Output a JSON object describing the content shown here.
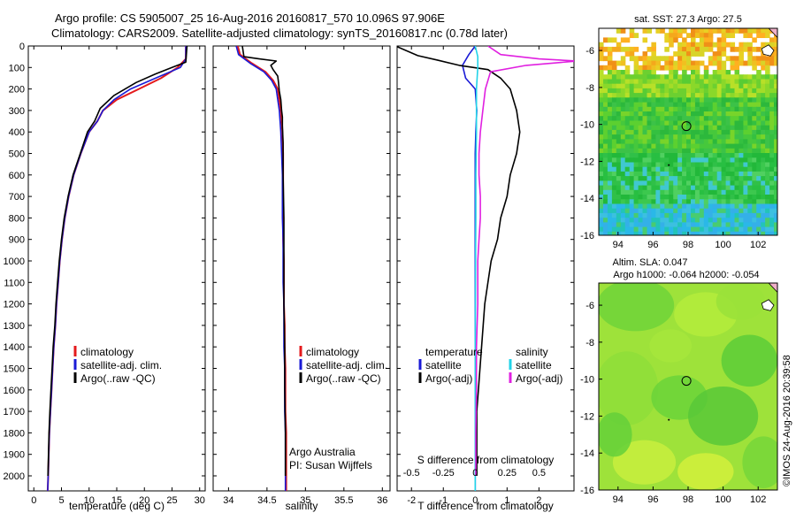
{
  "header": {
    "title_line1": "Argo profile: CS 5905007_25 16-Aug-2016 20160817_570 10.096S 97.906E",
    "title_line2": "Climatology: CARS2009. Satellite-adjusted climatology: synTS_20160817.nc (0.78d later)"
  },
  "colors": {
    "climatology": "#e41a1c",
    "satellite": "#1a1ad6",
    "argo": "#000000",
    "satellite_s": "#22d3e8",
    "argo_s": "#e020e0"
  },
  "depth_axis": {
    "ylim": [
      0,
      2070
    ],
    "ticks": [
      0,
      100,
      200,
      300,
      400,
      500,
      600,
      700,
      800,
      900,
      1000,
      1100,
      1200,
      1300,
      1400,
      1500,
      1600,
      1700,
      1800,
      1900,
      2000
    ],
    "tick_labels": [
      "0",
      "100",
      "200",
      "300",
      "400",
      "500",
      "600",
      "700",
      "800",
      "900",
      "1000",
      "1100",
      "1200",
      "1300",
      "1400",
      "1500",
      "1600",
      "1700",
      "1800",
      "1900",
      "2000"
    ]
  },
  "legend_profiles": [
    "climatology",
    "satellite-adj. clim.",
    "Argo(..raw -QC)"
  ],
  "legend_diff": {
    "col1_title": "temperature",
    "col2_title": "salinity",
    "satellite": "satellite",
    "argo": "Argo(-adj)"
  },
  "credits": {
    "line1": "Argo Australia",
    "line2": "PI: Susan Wijffels"
  },
  "maps": {
    "sst_title": "sat. SST: 27.3 Argo: 27.5",
    "sla_title_line1": "Altim. SLA: 0.047",
    "sla_title_line2": "Argo h1000: -0.064 h2000: -0.054",
    "x_ticks": [
      94,
      96,
      98,
      100,
      102
    ],
    "x_tick_labels": [
      "94",
      "96",
      "98",
      "100",
      "102"
    ],
    "y_ticks": [
      -6,
      -8,
      -10,
      -12,
      -14,
      -16
    ],
    "y_tick_labels": [
      "-6",
      "-8",
      "-10",
      "-12",
      "-14",
      "-16"
    ],
    "xlim": [
      92.9,
      103.1
    ],
    "ylim": [
      -16,
      -4.8
    ],
    "argo_position": [
      97.906,
      -10.096
    ]
  },
  "side_stamp": "©IMOS 24-Aug-2016 20:39:58",
  "chart_data": [
    {
      "type": "line",
      "xlabel": "temperature (deg C)",
      "xlim": [
        -1,
        31
      ],
      "x_ticks": [
        0,
        5,
        10,
        15,
        20,
        25,
        30
      ],
      "x_tick_labels": [
        "0",
        "5",
        "10",
        "15",
        "20",
        "25",
        "30"
      ],
      "ylim": [
        0,
        2070
      ],
      "series": [
        {
          "name": "climatology",
          "color_key": "climatology",
          "x": [
            27.5,
            27.5,
            26,
            23,
            19,
            15,
            12.5,
            11.5,
            10,
            8.5,
            7.2,
            6.3,
            5.6,
            5.1,
            4.7,
            4.4,
            4.1,
            3.9,
            3.6,
            3.4,
            3.2,
            3,
            2.8,
            2.7,
            2.6,
            2.5
          ],
          "y": [
            0,
            60,
            100,
            150,
            200,
            250,
            300,
            350,
            400,
            500,
            600,
            700,
            800,
            900,
            1000,
            1100,
            1200,
            1300,
            1400,
            1500,
            1600,
            1700,
            1800,
            1900,
            2000,
            2070
          ]
        },
        {
          "name": "satellite-adj. clim.",
          "color_key": "satellite",
          "x": [
            27.5,
            27.5,
            26.5,
            22,
            17.5,
            14.5,
            12.5,
            11.5,
            10,
            8.5,
            7.2,
            6.3,
            5.6,
            5.1,
            4.7,
            4.4,
            4.1,
            3.9,
            3.6,
            3.4,
            3.2,
            3,
            2.8,
            2.7,
            2.6,
            2.5
          ],
          "y": [
            0,
            60,
            100,
            150,
            200,
            250,
            300,
            350,
            400,
            500,
            600,
            700,
            800,
            900,
            1000,
            1100,
            1200,
            1300,
            1400,
            1500,
            1600,
            1700,
            1800,
            1900,
            2000,
            2070
          ]
        },
        {
          "name": "Argo(..raw -QC)",
          "color_key": "argo",
          "x": [
            27.7,
            27.5,
            25,
            22,
            18.5,
            14.5,
            12,
            11,
            9.7,
            8.4,
            7.1,
            6.2,
            5.5,
            5,
            4.6,
            4.3,
            4,
            3.8,
            3.5,
            3.3,
            3.1,
            2.9,
            2.75,
            2.65,
            2.55
          ],
          "y": [
            0,
            75,
            100,
            130,
            170,
            230,
            290,
            350,
            400,
            500,
            600,
            700,
            800,
            900,
            1000,
            1100,
            1200,
            1300,
            1400,
            1500,
            1600,
            1700,
            1800,
            1900,
            2000
          ]
        }
      ]
    },
    {
      "type": "line",
      "xlabel": "salinity",
      "xlim": [
        33.8,
        36.1
      ],
      "x_ticks": [
        34,
        34.5,
        35,
        35.5,
        36
      ],
      "x_tick_labels": [
        "34",
        "34.5",
        "35",
        "35.5",
        "36"
      ],
      "ylim": [
        0,
        2070
      ],
      "series": [
        {
          "name": "climatology",
          "color_key": "climatology",
          "x": [
            34.12,
            34.15,
            34.3,
            34.48,
            34.58,
            34.64,
            34.68,
            34.7,
            34.71,
            34.71,
            34.71,
            34.71,
            34.71,
            34.72,
            34.72,
            34.72,
            34.73,
            34.73,
            34.74,
            34.74,
            34.74,
            34.75,
            34.75,
            34.75
          ],
          "y": [
            0,
            40,
            80,
            120,
            160,
            200,
            300,
            400,
            500,
            600,
            700,
            800,
            900,
            1000,
            1100,
            1200,
            1300,
            1400,
            1500,
            1600,
            1700,
            1800,
            1900,
            2070
          ]
        },
        {
          "name": "satellite-adj. clim.",
          "color_key": "satellite",
          "x": [
            34.1,
            34.13,
            34.28,
            34.46,
            34.56,
            34.62,
            34.66,
            34.68,
            34.69,
            34.7,
            34.7,
            34.7,
            34.71,
            34.71,
            34.71,
            34.72,
            34.72,
            34.72,
            34.73,
            34.73,
            34.73,
            34.74,
            34.74,
            34.74
          ],
          "y": [
            0,
            40,
            80,
            120,
            160,
            200,
            300,
            400,
            500,
            600,
            700,
            800,
            900,
            1000,
            1100,
            1200,
            1300,
            1400,
            1500,
            1600,
            1700,
            1800,
            1900,
            2070
          ]
        },
        {
          "name": "Argo(..raw -QC)",
          "color_key": "argo",
          "x": [
            34.18,
            34.2,
            34.4,
            34.62,
            34.55,
            34.58,
            34.64,
            34.65,
            34.66,
            34.68,
            34.69,
            34.7,
            34.7,
            34.71,
            34.71,
            34.72,
            34.72,
            34.72,
            34.73,
            34.73,
            34.74,
            34.74,
            34.74
          ],
          "y": [
            0,
            50,
            60,
            70,
            90,
            110,
            140,
            170,
            210,
            250,
            300,
            330,
            370,
            450,
            600,
            800,
            1000,
            1200,
            1400,
            1600,
            1800,
            1900,
            2000
          ]
        }
      ]
    },
    {
      "type": "line",
      "xlabel": "T difference from climatology",
      "x2label": "S difference from climatology",
      "xlim": [
        -2.45,
        3.1
      ],
      "x_ticks": [
        -2,
        -1,
        0,
        1,
        2
      ],
      "x_tick_labels": [
        "-2",
        "-1",
        "0",
        "1",
        "2"
      ],
      "s_ticks": [
        -0.5,
        -0.25,
        0,
        0.25,
        0.5
      ],
      "s_tick_labels": [
        "-0.5",
        "-0.25",
        "0",
        "0.25",
        "0.5"
      ],
      "s_scale": 4,
      "ylim": [
        0,
        2070
      ],
      "series": [
        {
          "name": "temperature satellite",
          "color_key": "satellite",
          "variable": "T",
          "x": [
            0,
            -0.2,
            -0.4,
            -0.3,
            0,
            0.05,
            0.02,
            0,
            0,
            0,
            0,
            0,
            0,
            0,
            0
          ],
          "y": [
            0,
            40,
            90,
            150,
            200,
            300,
            400,
            500,
            700,
            900,
            1100,
            1400,
            1700,
            2000,
            2070
          ]
        },
        {
          "name": "temperature Argo(-adj)",
          "color_key": "argo",
          "variable": "T",
          "x": [
            -2.5,
            -1.8,
            -1.2,
            -0.5,
            0.4,
            0.8,
            1.1,
            1.3,
            1.4,
            1.3,
            1.1,
            1.0,
            0.8,
            0.7,
            0.5,
            0.4,
            0.3,
            0.25,
            0.2,
            0.15,
            0.1,
            0.05,
            0.05,
            0.05
          ],
          "y": [
            0,
            45,
            65,
            90,
            110,
            150,
            200,
            300,
            400,
            500,
            600,
            700,
            800,
            900,
            1000,
            1100,
            1200,
            1300,
            1400,
            1500,
            1600,
            1700,
            1900,
            2000
          ]
        },
        {
          "name": "salinity satellite",
          "color_key": "satellite_s",
          "variable": "S",
          "x": [
            0,
            0.02,
            0.02,
            0.01,
            0.01,
            0.005,
            0.005,
            0.003,
            0,
            0,
            0
          ],
          "y": [
            0,
            50,
            100,
            200,
            400,
            600,
            800,
            1000,
            1400,
            1800,
            2070
          ]
        },
        {
          "name": "salinity Argo(-adj)",
          "color_key": "argo_s",
          "variable": "S",
          "x": [
            0.1,
            0.2,
            0.5,
            0.8,
            0.4,
            0.12,
            0.08,
            0.06,
            0.04,
            0.03,
            0.03,
            0.04,
            0.04,
            0.03,
            0.02,
            0.02,
            0.01,
            0.01,
            0.005,
            0.005
          ],
          "y": [
            0,
            40,
            60,
            70,
            90,
            120,
            200,
            300,
            400,
            500,
            600,
            700,
            800,
            900,
            1000,
            1200,
            1400,
            1600,
            1800,
            2000
          ]
        }
      ]
    },
    {
      "type": "heatmap",
      "title": "sat. SST: 27.3 Argo: 27.5",
      "xlim": [
        92.9,
        103.1
      ],
      "ylim": [
        -16,
        -4.8
      ],
      "value_range": [
        24,
        30
      ],
      "description_free": true
    },
    {
      "type": "heatmap",
      "title": "Altim. SLA: 0.047",
      "xlim": [
        92.9,
        103.1
      ],
      "ylim": [
        -16,
        -4.8
      ]
    }
  ]
}
